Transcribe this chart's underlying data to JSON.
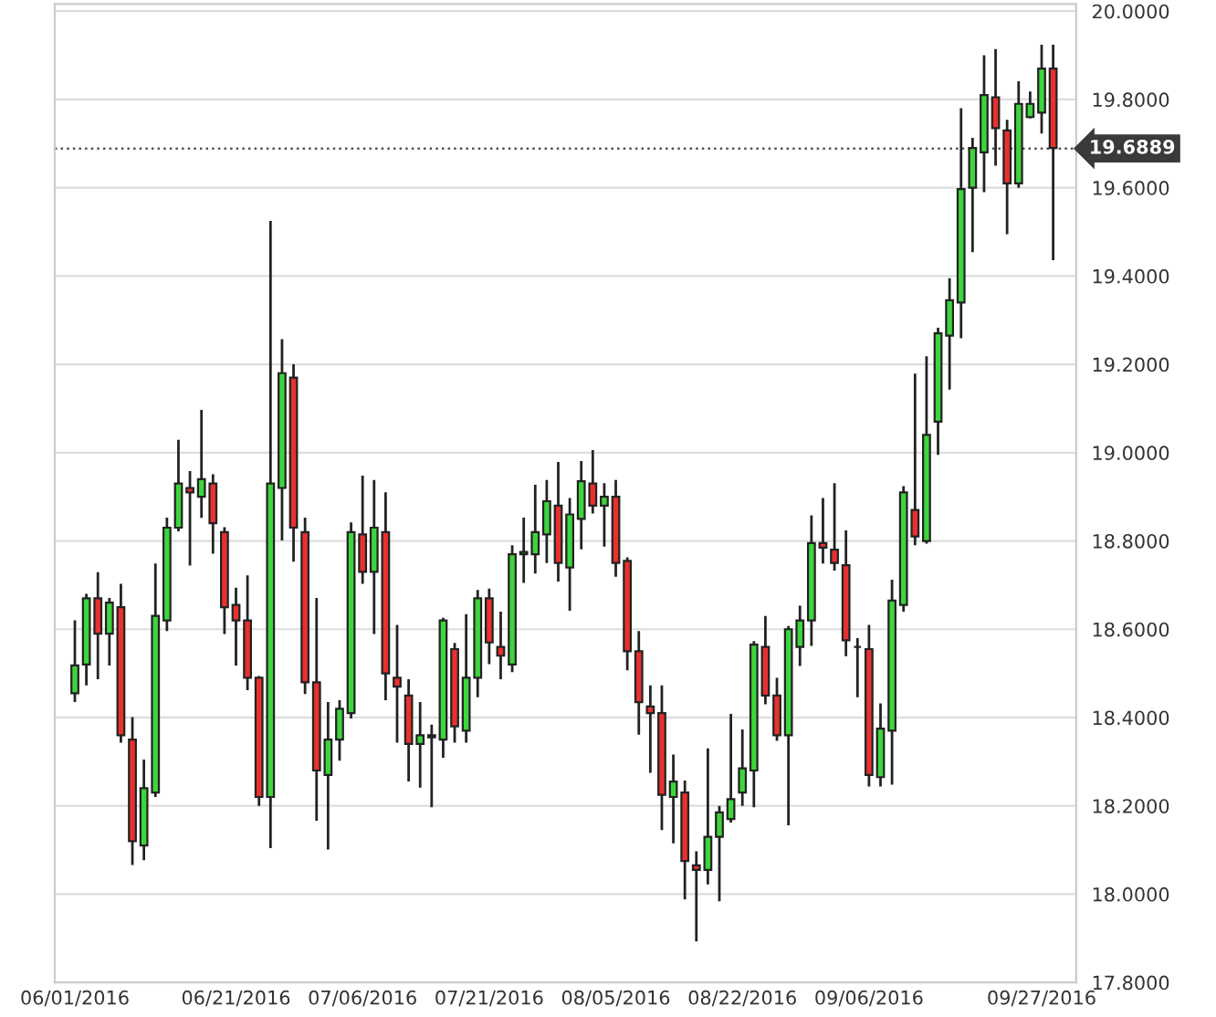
{
  "chart_data": {
    "type": "candlestick",
    "categories": [
      "06/01/2016",
      null,
      null,
      null,
      null,
      null,
      null,
      null,
      null,
      null,
      null,
      null,
      null,
      null,
      "06/21/2016",
      null,
      null,
      null,
      null,
      null,
      null,
      null,
      null,
      null,
      null,
      "07/06/2016",
      null,
      null,
      null,
      null,
      null,
      null,
      null,
      null,
      null,
      null,
      "07/21/2016",
      null,
      null,
      null,
      null,
      null,
      null,
      null,
      null,
      null,
      null,
      "08/05/2016",
      null,
      null,
      null,
      null,
      null,
      null,
      null,
      null,
      null,
      null,
      "08/22/2016",
      null,
      null,
      null,
      null,
      null,
      null,
      null,
      null,
      null,
      null,
      "09/06/2016",
      null,
      null,
      null,
      null,
      null,
      null,
      null,
      null,
      null,
      null,
      null,
      null,
      null,
      null,
      "09/27/2016",
      null
    ],
    "ohlc": [
      [
        18.455,
        18.62,
        18.435,
        18.518
      ],
      [
        18.52,
        18.68,
        18.473,
        18.67
      ],
      [
        18.67,
        18.729,
        18.487,
        18.59
      ],
      [
        18.59,
        18.671,
        18.518,
        18.66
      ],
      [
        18.65,
        18.703,
        18.343,
        18.36
      ],
      [
        18.35,
        18.401,
        18.066,
        18.12
      ],
      [
        18.11,
        18.305,
        18.077,
        18.24
      ],
      [
        18.23,
        18.749,
        18.22,
        18.63
      ],
      [
        18.62,
        18.853,
        18.596,
        18.83
      ],
      [
        18.83,
        19.029,
        18.822,
        18.93
      ],
      [
        18.92,
        18.958,
        18.744,
        18.91
      ],
      [
        18.9,
        19.097,
        18.852,
        18.94
      ],
      [
        18.93,
        18.951,
        18.771,
        18.84
      ],
      [
        18.82,
        18.831,
        18.589,
        18.65
      ],
      [
        18.655,
        18.694,
        18.518,
        18.62
      ],
      [
        18.62,
        18.722,
        18.462,
        18.49
      ],
      [
        18.49,
        18.494,
        18.2,
        18.22
      ],
      [
        18.22,
        19.525,
        18.104,
        18.93
      ],
      [
        18.92,
        19.257,
        18.801,
        19.18
      ],
      [
        19.17,
        19.2,
        18.753,
        18.83
      ],
      [
        18.82,
        18.853,
        18.453,
        18.48
      ],
      [
        18.48,
        18.671,
        18.166,
        18.28
      ],
      [
        18.27,
        18.435,
        18.101,
        18.35
      ],
      [
        18.35,
        18.439,
        18.302,
        18.42
      ],
      [
        18.41,
        18.842,
        18.398,
        18.82
      ],
      [
        18.815,
        18.948,
        18.703,
        18.73
      ],
      [
        18.73,
        18.938,
        18.589,
        18.83
      ],
      [
        18.82,
        18.91,
        18.439,
        18.5
      ],
      [
        18.49,
        18.61,
        18.343,
        18.47
      ],
      [
        18.45,
        18.487,
        18.255,
        18.34
      ],
      [
        18.34,
        18.435,
        18.241,
        18.36
      ],
      [
        18.36,
        18.384,
        18.197,
        18.355
      ],
      [
        18.35,
        18.626,
        18.309,
        18.62
      ],
      [
        18.555,
        18.569,
        18.343,
        18.38
      ],
      [
        18.37,
        18.634,
        18.343,
        18.49
      ],
      [
        18.49,
        18.689,
        18.446,
        18.67
      ],
      [
        18.67,
        18.692,
        18.521,
        18.57
      ],
      [
        18.56,
        18.64,
        18.487,
        18.54
      ],
      [
        18.52,
        18.79,
        18.503,
        18.77
      ],
      [
        18.77,
        18.853,
        18.705,
        18.775
      ],
      [
        18.77,
        18.927,
        18.726,
        18.82
      ],
      [
        18.815,
        18.938,
        18.75,
        18.89
      ],
      [
        18.88,
        18.979,
        18.708,
        18.75
      ],
      [
        18.74,
        18.897,
        18.642,
        18.86
      ],
      [
        18.85,
        18.981,
        18.781,
        18.935
      ],
      [
        18.93,
        19.006,
        18.862,
        18.88
      ],
      [
        18.88,
        18.931,
        18.787,
        18.9
      ],
      [
        18.9,
        18.938,
        18.719,
        18.75
      ],
      [
        18.755,
        18.763,
        18.507,
        18.55
      ],
      [
        18.55,
        18.596,
        18.361,
        18.435
      ],
      [
        18.425,
        18.473,
        18.275,
        18.41
      ],
      [
        18.41,
        18.473,
        18.145,
        18.225
      ],
      [
        18.22,
        18.316,
        18.115,
        18.255
      ],
      [
        18.23,
        18.257,
        17.988,
        18.075
      ],
      [
        18.065,
        18.097,
        17.893,
        18.055
      ],
      [
        18.055,
        18.33,
        18.022,
        18.13
      ],
      [
        18.13,
        18.2,
        17.984,
        18.185
      ],
      [
        18.17,
        18.408,
        18.162,
        18.215
      ],
      [
        18.23,
        18.373,
        18.2,
        18.285
      ],
      [
        18.28,
        18.573,
        18.197,
        18.565
      ],
      [
        18.56,
        18.63,
        18.43,
        18.45
      ],
      [
        18.45,
        18.49,
        18.347,
        18.36
      ],
      [
        18.36,
        18.607,
        18.156,
        18.6
      ],
      [
        18.56,
        18.653,
        18.517,
        18.62
      ],
      [
        18.62,
        18.858,
        18.562,
        18.795
      ],
      [
        18.795,
        18.897,
        18.749,
        18.785
      ],
      [
        18.78,
        18.931,
        18.733,
        18.75
      ],
      [
        18.745,
        18.824,
        18.539,
        18.575
      ],
      [
        18.56,
        18.58,
        18.446,
        18.56
      ],
      [
        18.555,
        18.61,
        18.244,
        18.27
      ],
      [
        18.265,
        18.432,
        18.244,
        18.375
      ],
      [
        18.37,
        18.712,
        18.248,
        18.665
      ],
      [
        18.655,
        18.924,
        18.64,
        18.91
      ],
      [
        18.87,
        19.179,
        18.79,
        18.81
      ],
      [
        18.8,
        19.218,
        18.794,
        19.04
      ],
      [
        19.07,
        19.283,
        18.995,
        19.27
      ],
      [
        19.265,
        19.395,
        19.143,
        19.345
      ],
      [
        19.34,
        19.78,
        19.259,
        19.597
      ],
      [
        19.6,
        19.713,
        19.454,
        19.69
      ],
      [
        19.68,
        19.9,
        19.59,
        19.81
      ],
      [
        19.805,
        19.914,
        19.65,
        19.735
      ],
      [
        19.73,
        19.754,
        19.495,
        19.61
      ],
      [
        19.61,
        19.841,
        19.6,
        19.79
      ],
      [
        19.76,
        19.818,
        19.757,
        19.79
      ],
      [
        19.77,
        19.924,
        19.723,
        19.87
      ],
      [
        19.87,
        19.924,
        19.436,
        19.69
      ]
    ],
    "colors": [
      "#3cd63c",
      "#3cd63c",
      "#e8312f",
      "#3cd63c",
      "#e8312f",
      "#e8312f",
      "#3cd63c",
      "#3cd63c",
      "#3cd63c",
      "#3cd63c",
      "#e8312f",
      "#3cd63c",
      "#e8312f",
      "#e8312f",
      "#e8312f",
      "#e8312f",
      "#e8312f",
      "#3cd63c",
      "#3cd63c",
      "#e8312f",
      "#e8312f",
      "#e8312f",
      "#3cd63c",
      "#3cd63c",
      "#3cd63c",
      "#e8312f",
      "#3cd63c",
      "#e8312f",
      "#e8312f",
      "#e8312f",
      "#3cd63c",
      "#e8312f",
      "#3cd63c",
      "#e8312f",
      "#3cd63c",
      "#3cd63c",
      "#e8312f",
      "#e8312f",
      "#3cd63c",
      "#3cd63c",
      "#3cd63c",
      "#3cd63c",
      "#e8312f",
      "#3cd63c",
      "#3cd63c",
      "#e8312f",
      "#3cd63c",
      "#e8312f",
      "#e8312f",
      "#e8312f",
      "#e8312f",
      "#e8312f",
      "#3cd63c",
      "#e8312f",
      "#e8312f",
      "#3cd63c",
      "#3cd63c",
      "#3cd63c",
      "#3cd63c",
      "#3cd63c",
      "#e8312f",
      "#e8312f",
      "#3cd63c",
      "#3cd63c",
      "#3cd63c",
      "#e8312f",
      "#e8312f",
      "#e8312f",
      "#222222",
      "#e8312f",
      "#3cd63c",
      "#3cd63c",
      "#3cd63c",
      "#e8312f",
      "#3cd63c",
      "#3cd63c",
      "#3cd63c",
      "#3cd63c",
      "#3cd63c",
      "#3cd63c",
      "#e8312f",
      "#e8312f",
      "#3cd63c",
      "#3cd63c",
      "#3cd63c",
      "#e8312f"
    ],
    "ylim": [
      17.8,
      20.016
    ],
    "yticks": [
      {
        "value": 17.8,
        "label": "17.8000"
      },
      {
        "value": 18.0,
        "label": "18.0000"
      },
      {
        "value": 18.2,
        "label": "18.2000"
      },
      {
        "value": 18.4,
        "label": "18.4000"
      },
      {
        "value": 18.6,
        "label": "18.6000"
      },
      {
        "value": 18.8,
        "label": "18.8000"
      },
      {
        "value": 19.0,
        "label": "19.0000"
      },
      {
        "value": 19.2,
        "label": "19.2000"
      },
      {
        "value": 19.4,
        "label": "19.4000"
      },
      {
        "value": 19.6,
        "label": "19.6000"
      },
      {
        "value": 19.8,
        "label": "19.8000"
      },
      {
        "value": 20.0,
        "label": "20.0000"
      }
    ],
    "ref_lines": [
      {
        "axis": "y",
        "value": 19.6889,
        "label": "19.6889",
        "color": "#555555",
        "line_style": "dotted"
      }
    ],
    "grid": "y"
  }
}
